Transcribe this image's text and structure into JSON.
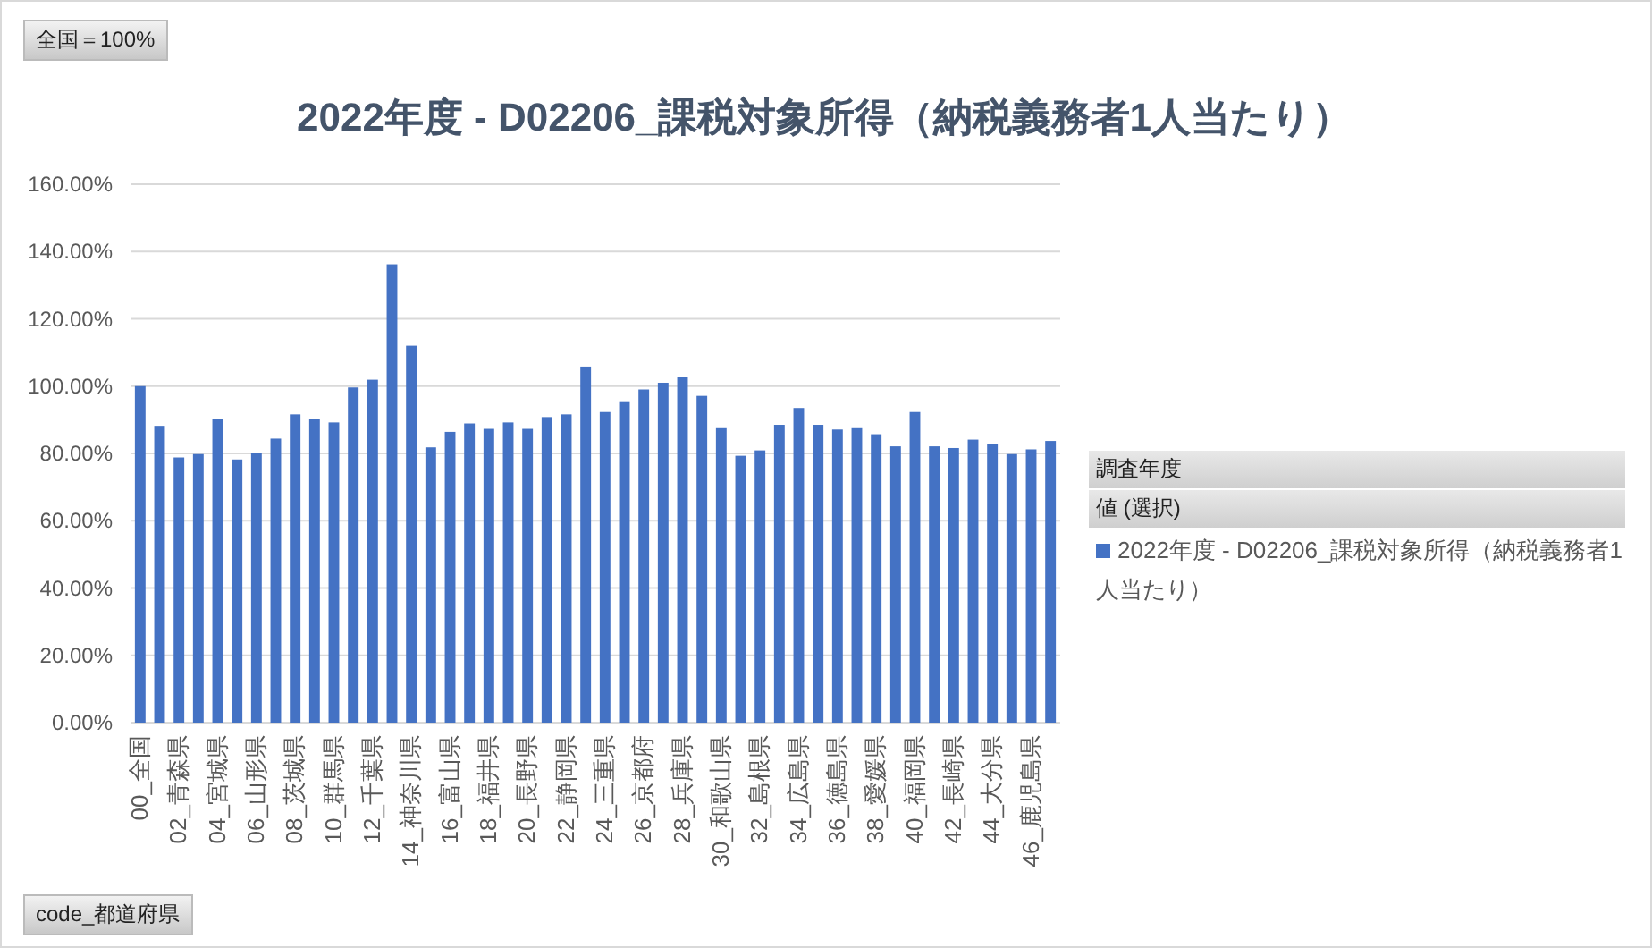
{
  "chart_data": {
    "type": "bar",
    "title": "2022年度 - D02206_課税対象所得（納税義務者1人当たり）",
    "categories": [
      "00_全国",
      null,
      "02_青森県",
      null,
      "04_宮城県",
      null,
      "06_山形県",
      null,
      "08_茨城県",
      null,
      "10_群馬県",
      null,
      "12_千葉県",
      null,
      "14_神奈川県",
      null,
      "16_富山県",
      null,
      "18_福井県",
      null,
      "20_長野県",
      null,
      "22_静岡県",
      null,
      "24_三重県",
      null,
      "26_京都府",
      null,
      "28_兵庫県",
      null,
      "30_和歌山県",
      null,
      "32_島根県",
      null,
      "34_広島県",
      null,
      "36_徳島県",
      null,
      "38_愛媛県",
      null,
      "40_福岡県",
      null,
      "42_長崎県",
      null,
      "44_大分県",
      null,
      "46_鹿児島県",
      null
    ],
    "series": [
      {
        "name": "2022年度 - D02206_課税対象所得（納税義務者1人当たり）",
        "color": "#4472c4",
        "values": [
          100,
          88.2,
          78.8,
          79.8,
          90.1,
          78.2,
          80.2,
          84.4,
          91.6,
          90.3,
          89.2,
          99.6,
          101.9,
          136.2,
          112.0,
          81.8,
          86.4,
          88.9,
          87.3,
          89.2,
          87.3,
          90.8,
          91.6,
          105.8,
          92.3,
          95.5,
          99.0,
          101.0,
          102.6,
          97.1,
          87.5,
          79.3,
          80.9,
          88.5,
          93.5,
          88.5,
          87.1,
          87.5,
          85.7,
          82.1,
          92.3,
          82.1,
          81.6,
          84.1,
          82.8,
          79.8,
          81.2,
          83.7
        ]
      }
    ],
    "ylim": [
      0,
      160
    ],
    "yticks": [
      {
        "value": 0,
        "label": "0.00%"
      },
      {
        "value": 20,
        "label": "20.00%"
      },
      {
        "value": 40,
        "label": "40.00%"
      },
      {
        "value": 60,
        "label": "60.00%"
      },
      {
        "value": 80,
        "label": "80.00%"
      },
      {
        "value": 100,
        "label": "100.00%"
      },
      {
        "value": 120,
        "label": "120.00%"
      },
      {
        "value": 140,
        "label": "140.00%"
      },
      {
        "value": 160,
        "label": "160.00%"
      }
    ],
    "grid": "y",
    "legend": "right",
    "annotations": [
      "全国＝100%",
      "調査年度",
      "値 (選択)",
      "code_都道府県"
    ]
  }
}
